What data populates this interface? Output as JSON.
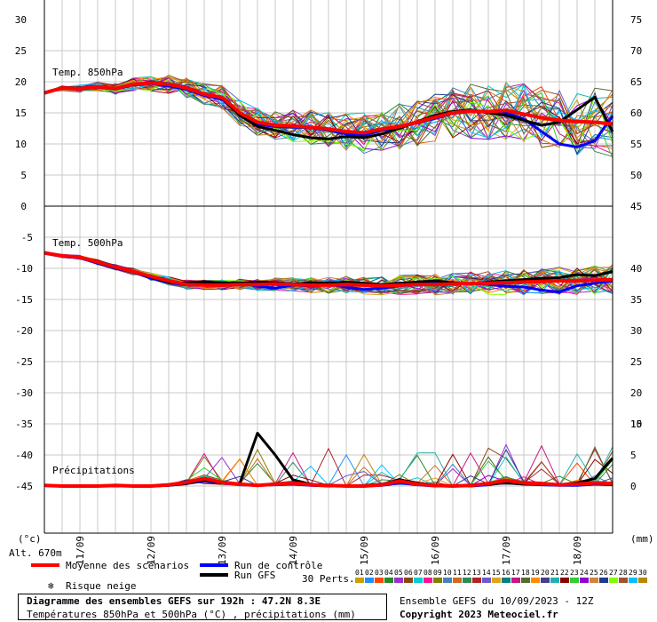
{
  "chart_data": [
    {
      "type": "line",
      "panel": "temp850",
      "label": "Temp. 850hPa",
      "left_axis": {
        "range": [
          0,
          30
        ],
        "ticks": [
          0,
          5,
          10,
          15,
          20,
          25,
          30
        ]
      },
      "right_axis": {
        "range": [
          45,
          75
        ],
        "ticks": [
          45,
          50,
          55,
          60,
          65,
          70,
          75
        ]
      },
      "x": [
        0,
        6,
        12,
        18,
        24,
        30,
        36,
        42,
        48,
        54,
        60,
        66,
        72,
        78,
        84,
        90,
        96,
        102,
        108,
        114,
        120,
        126,
        132,
        138,
        144,
        150,
        156,
        162,
        168,
        174,
        180,
        186,
        192
      ],
      "series": [
        {
          "name": "Moyenne des scénarios",
          "color": "#ff0000",
          "values": [
            18.2,
            19.0,
            18.9,
            19.2,
            18.9,
            19.6,
            19.8,
            19.6,
            19.0,
            18.0,
            17.5,
            15.0,
            13.5,
            13.0,
            12.9,
            12.7,
            12.4,
            12.0,
            11.8,
            12.4,
            12.8,
            13.5,
            14.3,
            15.0,
            15.3,
            15.2,
            15.4,
            14.8,
            14.2,
            13.8,
            13.6,
            13.5,
            13.2
          ]
        },
        {
          "name": "Run de contrôle",
          "color": "#0000ff",
          "values": [
            18.3,
            19.0,
            18.8,
            19.1,
            18.8,
            19.5,
            19.7,
            19.3,
            18.8,
            17.8,
            17.2,
            14.8,
            13.2,
            12.8,
            12.7,
            12.6,
            12.2,
            11.6,
            11.4,
            12.2,
            12.7,
            13.4,
            14.1,
            14.9,
            15.2,
            15.1,
            15.0,
            14.0,
            12.0,
            10.0,
            9.5,
            10.5,
            14.5
          ]
        },
        {
          "name": "Run GFS",
          "color": "#000000",
          "values": [
            18.2,
            19.1,
            19.0,
            19.2,
            18.9,
            19.6,
            19.9,
            19.7,
            19.1,
            18.1,
            17.4,
            14.6,
            12.8,
            12.2,
            11.5,
            11.0,
            10.8,
            11.2,
            11.0,
            11.6,
            12.5,
            13.6,
            14.6,
            15.2,
            15.5,
            15.0,
            14.6,
            13.8,
            13.0,
            13.5,
            15.5,
            17.5,
            12.0
          ]
        }
      ]
    },
    {
      "type": "line",
      "panel": "temp500",
      "label": "Temp. 500hPa",
      "left_axis": {
        "range": [
          -30,
          0
        ],
        "ticks": [
          -5,
          -10,
          -15,
          -20,
          -25,
          -30
        ]
      },
      "right_axis": {
        "range": [
          15,
          45
        ],
        "ticks": [
          15,
          20,
          25,
          30,
          35,
          40,
          45
        ]
      },
      "x": [
        0,
        6,
        12,
        18,
        24,
        30,
        36,
        42,
        48,
        54,
        60,
        66,
        72,
        78,
        84,
        90,
        96,
        102,
        108,
        114,
        120,
        126,
        132,
        138,
        144,
        150,
        156,
        162,
        168,
        174,
        180,
        186,
        192
      ],
      "series": [
        {
          "name": "Moyenne des scénarios",
          "color": "#ff0000",
          "values": [
            -7.5,
            -8.0,
            -8.2,
            -9.0,
            -9.8,
            -10.5,
            -11.3,
            -12.0,
            -12.6,
            -12.7,
            -12.7,
            -12.6,
            -12.6,
            -12.5,
            -12.6,
            -12.7,
            -12.7,
            -12.6,
            -12.7,
            -12.8,
            -12.7,
            -12.6,
            -12.6,
            -12.5,
            -12.4,
            -12.4,
            -12.3,
            -12.2,
            -12.1,
            -12.0,
            -12.0,
            -11.9,
            -11.8
          ]
        },
        {
          "name": "Run de contrôle",
          "color": "#0000ff",
          "values": [
            -7.6,
            -8.1,
            -8.3,
            -9.2,
            -10.0,
            -10.6,
            -11.6,
            -12.3,
            -12.7,
            -12.5,
            -12.4,
            -12.3,
            -12.9,
            -13.2,
            -12.7,
            -12.8,
            -12.6,
            -13.0,
            -13.4,
            -13.2,
            -12.8,
            -12.6,
            -12.4,
            -12.3,
            -12.4,
            -12.6,
            -12.9,
            -13.0,
            -13.5,
            -13.8,
            -12.8,
            -12.4,
            -12.0
          ]
        },
        {
          "name": "Run GFS",
          "color": "#000000",
          "values": [
            -7.5,
            -8.0,
            -8.2,
            -9.1,
            -9.9,
            -10.6,
            -11.4,
            -12.2,
            -12.4,
            -12.2,
            -12.3,
            -12.4,
            -12.2,
            -12.3,
            -12.5,
            -12.3,
            -12.4,
            -12.2,
            -12.4,
            -12.6,
            -12.4,
            -12.2,
            -12.0,
            -12.3,
            -12.5,
            -12.2,
            -12.0,
            -11.8,
            -11.6,
            -11.5,
            -11.0,
            -11.2,
            -10.5
          ]
        }
      ]
    },
    {
      "type": "line",
      "panel": "precip",
      "label": "Précipitations",
      "left_axis": {
        "range": [
          -50,
          -35
        ],
        "ticks": [
          -35,
          -40,
          -45
        ]
      },
      "right_axis": {
        "range": [
          0,
          10
        ],
        "ticks": [
          0,
          5,
          10
        ]
      },
      "x": [
        0,
        6,
        12,
        18,
        24,
        30,
        36,
        42,
        48,
        54,
        60,
        66,
        72,
        78,
        84,
        90,
        96,
        102,
        108,
        114,
        120,
        126,
        132,
        138,
        144,
        150,
        156,
        162,
        168,
        174,
        180,
        186,
        192
      ],
      "series": [
        {
          "name": "Moyenne des scénarios",
          "color": "#ff0000",
          "values": [
            0.1,
            0.0,
            0.0,
            0.0,
            0.1,
            0.0,
            0.0,
            0.2,
            0.6,
            1.2,
            0.6,
            0.3,
            0.1,
            0.3,
            0.5,
            0.2,
            0.1,
            0.0,
            0.0,
            0.2,
            0.8,
            0.3,
            0.1,
            0.0,
            0.1,
            0.4,
            0.9,
            0.5,
            0.4,
            0.2,
            0.3,
            0.5,
            0.4
          ]
        },
        {
          "name": "Run de contrôle",
          "color": "#0000ff",
          "values": [
            0.1,
            0.0,
            0.0,
            0.0,
            0.1,
            0.0,
            0.0,
            0.1,
            0.4,
            0.8,
            0.5,
            0.2,
            0.1,
            0.2,
            0.3,
            0.1,
            0.0,
            0.0,
            0.0,
            0.1,
            0.5,
            0.2,
            0.0,
            0.0,
            0.0,
            0.2,
            0.6,
            0.3,
            0.2,
            0.1,
            0.1,
            0.3,
            0.2
          ]
        },
        {
          "name": "Run GFS",
          "color": "#000000",
          "values": [
            0.1,
            0.0,
            0.0,
            0.0,
            0.0,
            0.0,
            0.0,
            0.1,
            0.4,
            1.0,
            0.5,
            0.4,
            8.5,
            5.0,
            1.0,
            0.3,
            0.0,
            0.0,
            0.1,
            0.3,
            1.0,
            0.5,
            0.1,
            0.0,
            0.1,
            0.3,
            0.5,
            0.3,
            0.4,
            0.2,
            0.5,
            1.2,
            4.5
          ]
        }
      ]
    }
  ],
  "ensemble": {
    "count": 30,
    "colors": [
      "#c8a000",
      "#1e90ff",
      "#ff4500",
      "#228b22",
      "#9932cc",
      "#8b4513",
      "#00ced1",
      "#ff1493",
      "#808000",
      "#4682b4",
      "#d2691e",
      "#2e8b57",
      "#b22222",
      "#6a5acd",
      "#daa520",
      "#008080",
      "#c71585",
      "#556b2f",
      "#ff8c00",
      "#483d8b",
      "#20b2aa",
      "#8b0000",
      "#32cd32",
      "#9400d3",
      "#cd853f",
      "#1e3a8a",
      "#7fff00",
      "#a0522d",
      "#00bfff",
      "#b8860b"
    ]
  },
  "x_axis": {
    "dates": [
      "11/09",
      "12/09",
      "13/09",
      "14/09",
      "15/09",
      "16/09",
      "17/09",
      "18/09"
    ],
    "left_unit": "(°c)",
    "right_unit": "(mm)",
    "altitude": "Alt. 670m"
  },
  "legend": {
    "mean": "Moyenne des scénarios",
    "control": "Run de contrôle",
    "gfs": "Run GFS",
    "snow": "Risque neige",
    "perts_label": "30 Perts.",
    "perts_numbers": [
      "01",
      "02",
      "03",
      "04",
      "05",
      "06",
      "07",
      "08",
      "09",
      "10",
      "11",
      "12",
      "13",
      "14",
      "15",
      "16",
      "17",
      "18",
      "19",
      "20",
      "21",
      "22",
      "23",
      "24",
      "25",
      "26",
      "27",
      "28",
      "29",
      "30"
    ]
  },
  "colors": {
    "mean": "#ff0000",
    "control": "#0000ff",
    "gfs": "#000000",
    "grid": "#c8c8c8",
    "snow": "#3399ff"
  },
  "info": {
    "title": "Diagramme des ensembles GEFS sur 192h : 47.2N 8.3E",
    "subtitle": "Températures 850hPa et 500hPa (°C) , précipitations (mm)",
    "run": "Ensemble GEFS du 10/09/2023 - 12Z",
    "copyright": "Copyright 2023 Meteociel.fr"
  }
}
